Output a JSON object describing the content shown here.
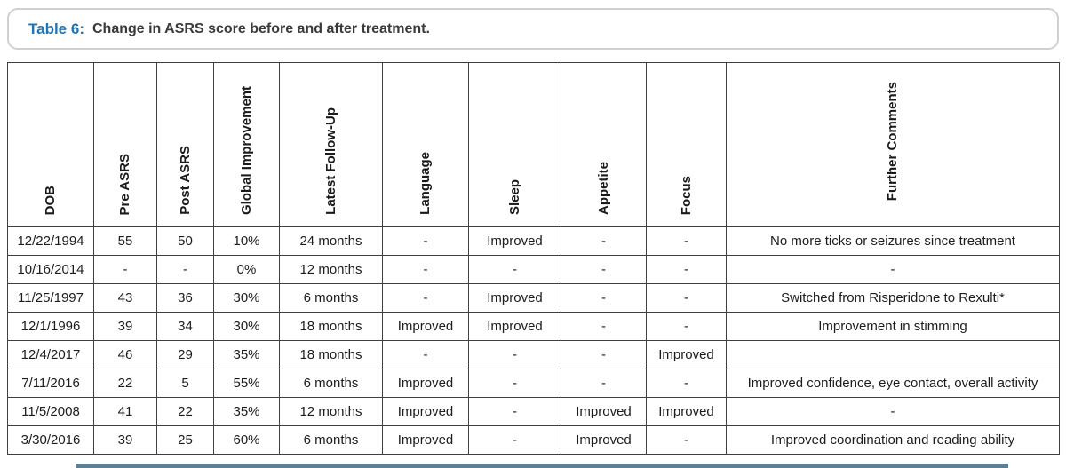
{
  "caption": {
    "label": "Table 6:",
    "text": "Change in ASRS score before and after treatment."
  },
  "colors": {
    "caption_label_blue": "#1f74b8",
    "caption_text": "#3a3a3a",
    "caption_border": "#ccd1d6",
    "table_border": "#3f3f3f",
    "bottom_bar_blue": "#5d7f94"
  },
  "table": {
    "columns": [
      "DOB",
      "Pre ASRS",
      "Post ASRS",
      "Global Improvement",
      "Latest Follow-Up",
      "Language",
      "Sleep",
      "Appetite",
      "Focus",
      "Further Comments"
    ],
    "rows": [
      [
        "12/22/1994",
        "55",
        "50",
        "10%",
        "24 months",
        "-",
        "Improved",
        "-",
        "-",
        "No more ticks or seizures since treatment"
      ],
      [
        "10/16/2014",
        "-",
        "-",
        "0%",
        "12 months",
        "-",
        "-",
        "-",
        "-",
        "-"
      ],
      [
        "11/25/1997",
        "43",
        "36",
        "30%",
        "6 months",
        "-",
        "Improved",
        "-",
        "-",
        "Switched from Risperidone to Rexulti*"
      ],
      [
        "12/1/1996",
        "39",
        "34",
        "30%",
        "18 months",
        "Improved",
        "Improved",
        "-",
        "-",
        "Improvement in stimming"
      ],
      [
        "12/4/2017",
        "46",
        "29",
        "35%",
        "18 months",
        "-",
        "-",
        "-",
        "Improved",
        ""
      ],
      [
        "7/11/2016",
        "22",
        "5",
        "55%",
        "6 months",
        "Improved",
        "-",
        "-",
        "-",
        "Improved confidence, eye contact, overall activity"
      ],
      [
        "11/5/2008",
        "41",
        "22",
        "35%",
        "12 months",
        "Improved",
        "-",
        "Improved",
        "Improved",
        "-"
      ],
      [
        "3/30/2016",
        "39",
        "25",
        "60%",
        "6 months",
        "Improved",
        "-",
        "Improved",
        "-",
        "Improved coordination and reading ability"
      ]
    ]
  }
}
